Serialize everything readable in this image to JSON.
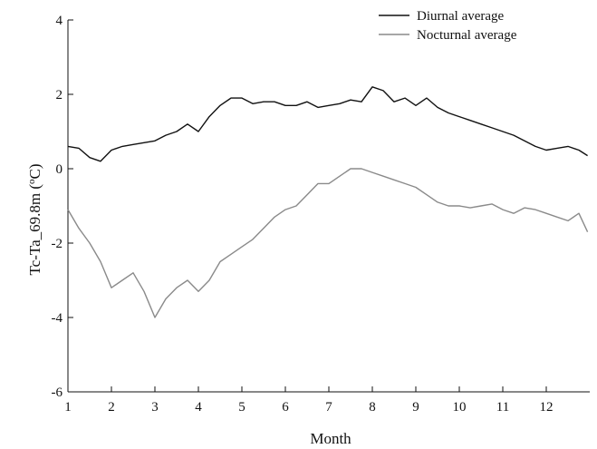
{
  "chart_data": {
    "type": "line",
    "title": "",
    "xlabel": "Month",
    "ylabel": "Tc-Ta_69.8m (°C)",
    "ylabel_main": "Tc-Ta_69.8m (",
    "ylabel_degree": "o",
    "ylabel_unit": "C)",
    "xlim": [
      1,
      13
    ],
    "ylim": [
      -6,
      4
    ],
    "xticks": [
      1,
      2,
      3,
      4,
      5,
      6,
      7,
      8,
      9,
      10,
      11,
      12
    ],
    "yticks": [
      -6,
      -4,
      -2,
      0,
      2,
      4
    ],
    "grid": false,
    "legend_position": "top-right",
    "series": [
      {
        "name": "Diurnal average",
        "color": "#111111",
        "x": [
          1.0,
          1.25,
          1.5,
          1.75,
          2.0,
          2.25,
          2.5,
          2.75,
          3.0,
          3.25,
          3.5,
          3.75,
          4.0,
          4.25,
          4.5,
          4.75,
          5.0,
          5.25,
          5.5,
          5.75,
          6.0,
          6.25,
          6.5,
          6.75,
          7.0,
          7.25,
          7.5,
          7.75,
          8.0,
          8.25,
          8.5,
          8.75,
          9.0,
          9.25,
          9.5,
          9.75,
          10.0,
          10.25,
          10.5,
          10.75,
          11.0,
          11.25,
          11.5,
          11.75,
          12.0,
          12.25,
          12.5,
          12.75,
          12.95
        ],
        "y": [
          0.6,
          0.55,
          0.3,
          0.2,
          0.5,
          0.6,
          0.65,
          0.7,
          0.75,
          0.9,
          1.0,
          1.2,
          1.0,
          1.4,
          1.7,
          1.9,
          1.9,
          1.75,
          1.8,
          1.8,
          1.7,
          1.7,
          1.8,
          1.65,
          1.7,
          1.75,
          1.85,
          1.8,
          2.2,
          2.1,
          1.8,
          1.9,
          1.7,
          1.9,
          1.65,
          1.5,
          1.4,
          1.3,
          1.2,
          1.1,
          1.0,
          0.9,
          0.75,
          0.6,
          0.5,
          0.55,
          0.6,
          0.5,
          0.35
        ]
      },
      {
        "name": "Nocturnal average",
        "color": "#8a8a8a",
        "x": [
          1.0,
          1.25,
          1.5,
          1.75,
          2.0,
          2.25,
          2.5,
          2.75,
          3.0,
          3.25,
          3.5,
          3.75,
          4.0,
          4.25,
          4.5,
          4.75,
          5.0,
          5.25,
          5.5,
          5.75,
          6.0,
          6.25,
          6.5,
          6.75,
          7.0,
          7.25,
          7.5,
          7.75,
          8.0,
          8.25,
          8.5,
          8.75,
          9.0,
          9.25,
          9.5,
          9.75,
          10.0,
          10.25,
          10.5,
          10.75,
          11.0,
          11.25,
          11.5,
          11.75,
          12.0,
          12.25,
          12.5,
          12.75,
          12.95
        ],
        "y": [
          -1.1,
          -1.6,
          -2.0,
          -2.5,
          -3.2,
          -3.0,
          -2.8,
          -3.3,
          -4.0,
          -3.5,
          -3.2,
          -3.0,
          -3.3,
          -3.0,
          -2.5,
          -2.3,
          -2.1,
          -1.9,
          -1.6,
          -1.3,
          -1.1,
          -1.0,
          -0.7,
          -0.4,
          -0.4,
          -0.2,
          0.0,
          0.0,
          -0.1,
          -0.2,
          -0.3,
          -0.4,
          -0.5,
          -0.7,
          -0.9,
          -1.0,
          -1.0,
          -1.05,
          -1.0,
          -0.95,
          -1.1,
          -1.2,
          -1.05,
          -1.1,
          -1.2,
          -1.3,
          -1.4,
          -1.2,
          -1.7
        ]
      }
    ]
  }
}
